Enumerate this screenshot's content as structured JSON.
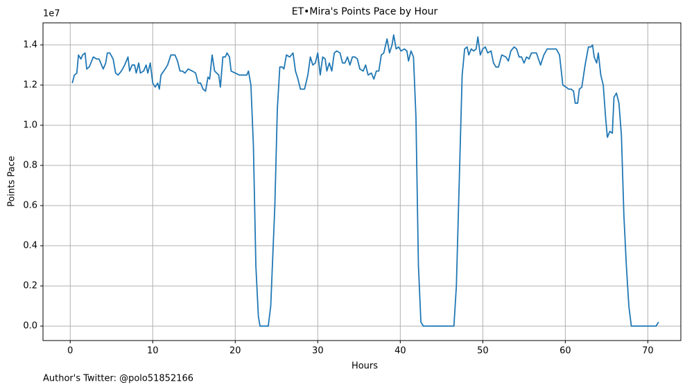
{
  "chart_data": {
    "type": "line",
    "title": "ET•Mira's Points Pace by Hour",
    "xlabel": "Hours",
    "ylabel": "Points Pace",
    "offset_label": "1e7",
    "footer": "Author's Twitter: @polo51852166",
    "color": "#1f77b4",
    "grid": true,
    "xlim": [
      -3.3,
      74.0
    ],
    "ylim": [
      -0.072,
      1.51
    ],
    "xticks": [
      0,
      10,
      20,
      30,
      40,
      50,
      60,
      70
    ],
    "yticks": [
      {
        "value": 0,
        "label": "0.0"
      },
      0.2,
      0.4,
      0.6,
      0.8,
      {
        "value": 1,
        "label": "1.0"
      },
      1.2,
      1.4
    ],
    "x": [
      0.25,
      0.5,
      0.8,
      1.0,
      1.3,
      1.5,
      1.8,
      2.0,
      2.3,
      2.8,
      3.2,
      3.5,
      4.0,
      4.3,
      4.5,
      4.8,
      5.2,
      5.5,
      5.8,
      6.2,
      6.6,
      7.0,
      7.2,
      7.5,
      7.8,
      8.0,
      8.3,
      8.5,
      8.9,
      9.2,
      9.4,
      9.7,
      10.0,
      10.3,
      10.6,
      10.8,
      11.0,
      11.5,
      11.8,
      12.2,
      12.7,
      13.0,
      13.3,
      13.6,
      13.9,
      14.3,
      14.8,
      15.2,
      15.5,
      15.8,
      16.1,
      16.4,
      16.7,
      16.9,
      17.2,
      17.5,
      18.0,
      18.2,
      18.5,
      18.8,
      19.0,
      19.3,
      19.5,
      20.0,
      20.5,
      21.0,
      21.4,
      21.6,
      21.9,
      22.2,
      22.5,
      22.8,
      23.0,
      24.0,
      24.3,
      24.8,
      25.1,
      25.4,
      25.7,
      25.9,
      26.2,
      26.6,
      27.0,
      27.3,
      27.6,
      27.9,
      28.4,
      28.8,
      29.1,
      29.4,
      29.7,
      30.0,
      30.3,
      30.6,
      30.9,
      31.1,
      31.4,
      31.7,
      32.0,
      32.3,
      32.7,
      33.0,
      33.3,
      33.6,
      33.9,
      34.2,
      34.5,
      34.8,
      35.1,
      35.5,
      35.8,
      36.1,
      36.5,
      36.8,
      37.1,
      37.4,
      37.7,
      38.0,
      38.4,
      38.7,
      39.0,
      39.2,
      39.5,
      39.8,
      40.1,
      40.5,
      40.8,
      41.0,
      41.3,
      41.6,
      41.9,
      42.2,
      42.5,
      42.8,
      46.5,
      46.8,
      47.2,
      47.5,
      47.8,
      48.1,
      48.3,
      48.6,
      48.9,
      49.2,
      49.4,
      49.7,
      50.0,
      50.3,
      50.6,
      51.0,
      51.3,
      51.6,
      51.9,
      52.3,
      52.8,
      53.1,
      53.4,
      53.8,
      54.1,
      54.4,
      54.7,
      55.0,
      55.3,
      55.6,
      55.9,
      56.5,
      57.0,
      57.4,
      57.8,
      58.2,
      58.5,
      58.9,
      59.3,
      59.7,
      60.1,
      60.4,
      60.7,
      61.0,
      61.2,
      61.5,
      61.7,
      62.0,
      62.4,
      62.8,
      63.1,
      63.3,
      63.5,
      63.8,
      64.0,
      64.3,
      64.6,
      64.9,
      65.1,
      65.4,
      65.7,
      65.9,
      66.2,
      66.5,
      66.8,
      67.1,
      67.4,
      67.7,
      68.0,
      71.0,
      71.3
    ],
    "values": [
      1.21,
      1.25,
      1.26,
      1.35,
      1.33,
      1.35,
      1.36,
      1.28,
      1.29,
      1.34,
      1.33,
      1.33,
      1.28,
      1.31,
      1.36,
      1.36,
      1.33,
      1.26,
      1.25,
      1.27,
      1.3,
      1.34,
      1.27,
      1.3,
      1.3,
      1.26,
      1.31,
      1.26,
      1.27,
      1.3,
      1.26,
      1.31,
      1.21,
      1.19,
      1.21,
      1.18,
      1.25,
      1.28,
      1.3,
      1.35,
      1.35,
      1.32,
      1.27,
      1.27,
      1.26,
      1.28,
      1.27,
      1.26,
      1.21,
      1.21,
      1.18,
      1.17,
      1.24,
      1.23,
      1.35,
      1.27,
      1.25,
      1.19,
      1.34,
      1.34,
      1.36,
      1.34,
      1.27,
      1.26,
      1.25,
      1.25,
      1.25,
      1.27,
      1.2,
      0.9,
      0.3,
      0.05,
      0.0,
      0.0,
      0.1,
      0.6,
      1.08,
      1.29,
      1.29,
      1.28,
      1.35,
      1.34,
      1.36,
      1.27,
      1.23,
      1.18,
      1.18,
      1.25,
      1.34,
      1.3,
      1.31,
      1.36,
      1.25,
      1.34,
      1.33,
      1.27,
      1.31,
      1.27,
      1.36,
      1.37,
      1.36,
      1.31,
      1.31,
      1.34,
      1.3,
      1.34,
      1.34,
      1.33,
      1.28,
      1.27,
      1.3,
      1.25,
      1.26,
      1.23,
      1.27,
      1.27,
      1.35,
      1.36,
      1.43,
      1.36,
      1.4,
      1.45,
      1.38,
      1.39,
      1.37,
      1.38,
      1.37,
      1.32,
      1.37,
      1.34,
      1.04,
      0.3,
      0.02,
      0.0,
      0.0,
      0.2,
      0.8,
      1.25,
      1.38,
      1.39,
      1.35,
      1.38,
      1.37,
      1.38,
      1.44,
      1.35,
      1.38,
      1.39,
      1.36,
      1.37,
      1.31,
      1.29,
      1.29,
      1.35,
      1.34,
      1.32,
      1.37,
      1.39,
      1.38,
      1.34,
      1.34,
      1.31,
      1.34,
      1.33,
      1.36,
      1.36,
      1.3,
      1.35,
      1.38,
      1.38,
      1.38,
      1.38,
      1.35,
      1.2,
      1.19,
      1.18,
      1.18,
      1.17,
      1.11,
      1.11,
      1.18,
      1.19,
      1.3,
      1.39,
      1.39,
      1.4,
      1.34,
      1.31,
      1.36,
      1.25,
      1.2,
      1.03,
      0.94,
      0.97,
      0.96,
      1.14,
      1.16,
      1.11,
      0.95,
      0.55,
      0.3,
      0.1,
      0.0,
      0.0,
      0.02
    ]
  }
}
